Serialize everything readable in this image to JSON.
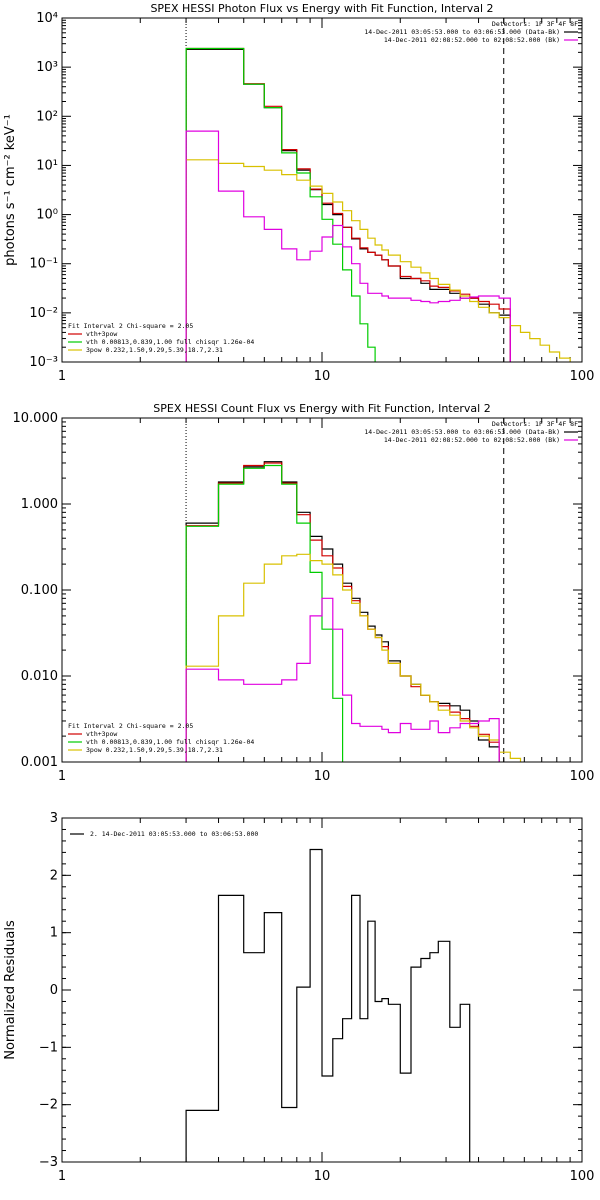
{
  "chart_data": [
    {
      "type": "line",
      "title": "SPEX HESSI Photon Flux vs Energy with Fit Function, Interval 2",
      "ylabel": "photons s⁻¹ cm⁻² keV⁻¹",
      "xlabel": "",
      "xscale": "log",
      "yscale": "log",
      "xlim": [
        1,
        100
      ],
      "ylim": [
        0.001,
        10000
      ],
      "x_ticks": [
        {
          "v": 1,
          "label": "1"
        },
        {
          "v": 10,
          "label": "10"
        },
        {
          "v": 100,
          "label": "100"
        }
      ],
      "y_ticks": [
        {
          "v": 0.001,
          "label": "10⁻³"
        },
        {
          "v": 0.01,
          "label": "10⁻²"
        },
        {
          "v": 0.1,
          "label": "10⁻¹"
        },
        {
          "v": 1,
          "label": "10⁰"
        },
        {
          "v": 10,
          "label": "10¹"
        },
        {
          "v": 100,
          "label": "10²"
        },
        {
          "v": 1000,
          "label": "10³"
        },
        {
          "v": 10000,
          "label": "10⁴"
        }
      ],
      "vlines": [
        {
          "x": 3,
          "style": "dotted"
        },
        {
          "x": 50,
          "style": "dashed"
        }
      ],
      "legend_top": {
        "detectors": "Detectors: 1F 3F 4F 8F",
        "lines": [
          {
            "text": "14-Dec-2011 03:05:53.000 to 03:06:53.000 (Data-Bk)",
            "color": "#000000"
          },
          {
            "text": "14-Dec-2011 02:08:52.000 to 02:08:52.000 (Bk)",
            "color": "#e000e0"
          }
        ]
      },
      "legend_bottom": {
        "header": "Fit Interval 2   Chi-square = 2.05",
        "lines": [
          {
            "text": "vth+3pow",
            "color": "#d00000"
          },
          {
            "text": "vth 0.00813,0.839,1.00  full chisqr 1.26e-04",
            "color": "#00cc00"
          },
          {
            "text": "3pow 0.232,1.50,9.29,5.39,18.7,2.31",
            "color": "#d8c000"
          }
        ]
      },
      "edges": [
        3,
        4,
        5,
        6,
        7,
        8,
        9,
        10,
        11,
        12,
        13,
        14,
        15,
        16,
        17,
        18,
        20,
        22,
        24,
        26,
        28,
        31,
        34,
        37,
        40,
        44,
        48,
        53,
        58,
        63,
        69,
        75,
        82,
        90,
        100
      ],
      "series": [
        {
          "color": "#000000",
          "values": [
            2300,
            2300,
            450,
            150,
            20,
            8,
            3.2,
            1.6,
            1.0,
            0.55,
            0.32,
            0.2,
            0.17,
            0.15,
            0.12,
            0.09,
            0.05,
            0.05,
            0.04,
            0.03,
            0.03,
            0.025,
            0.02,
            0.02,
            0.015,
            0.01,
            0.009
          ]
        },
        {
          "color": "#d00000",
          "values": [
            2400,
            2400,
            460,
            160,
            21,
            8.5,
            3.3,
            1.7,
            1.05,
            0.55,
            0.33,
            0.21,
            0.17,
            0.15,
            0.12,
            0.09,
            0.055,
            0.05,
            0.045,
            0.035,
            0.033,
            0.028,
            0.024,
            0.02,
            0.017,
            0.015,
            0.012
          ]
        },
        {
          "color": "#00cc00",
          "values": [
            2400,
            2400,
            450,
            150,
            18,
            7,
            2.3,
            0.8,
            0.25,
            0.075,
            0.022,
            0.006,
            0.002,
            0.0008
          ]
        },
        {
          "color": "#d8c000",
          "values": [
            13,
            11,
            9.5,
            8,
            6.5,
            5,
            3.8,
            2.7,
            1.8,
            1.2,
            0.75,
            0.5,
            0.33,
            0.24,
            0.19,
            0.15,
            0.11,
            0.085,
            0.065,
            0.05,
            0.038,
            0.029,
            0.022,
            0.017,
            0.013,
            0.01,
            0.008,
            0.0055,
            0.004,
            0.003,
            0.0022,
            0.0016,
            0.0012
          ]
        },
        {
          "color": "#e000e0",
          "values": [
            50,
            3,
            0.9,
            0.5,
            0.2,
            0.12,
            0.18,
            0.35,
            0.6,
            0.22,
            0.1,
            0.04,
            0.025,
            0.025,
            0.022,
            0.02,
            0.02,
            0.018,
            0.017,
            0.016,
            0.017,
            0.018,
            0.02,
            0.021,
            0.022,
            0.022,
            0.02
          ]
        }
      ]
    },
    {
      "type": "line",
      "title": "SPEX HESSI Count Flux vs Energy with Fit Function, Interval 2",
      "ylabel": "",
      "xlabel": "",
      "xscale": "log",
      "yscale": "log",
      "xlim": [
        1,
        100
      ],
      "ylim": [
        0.001,
        10
      ],
      "x_ticks": [
        {
          "v": 1,
          "label": "1"
        },
        {
          "v": 10,
          "label": "10"
        },
        {
          "v": 100,
          "label": "100"
        }
      ],
      "y_ticks": [
        {
          "v": 0.001,
          "label": "0.001"
        },
        {
          "v": 0.01,
          "label": "0.010"
        },
        {
          "v": 0.1,
          "label": "0.100"
        },
        {
          "v": 1,
          "label": "1.000"
        },
        {
          "v": 10,
          "label": "10.000"
        }
      ],
      "vlines": [
        {
          "x": 3,
          "style": "dotted"
        },
        {
          "x": 50,
          "style": "dashed"
        }
      ],
      "legend_top": {
        "detectors": "Detectors: 1F 3F 4F 8F",
        "lines": [
          {
            "text": "14-Dec-2011 03:05:53.000 to 03:06:53.000 (Data-Bk)",
            "color": "#000000"
          },
          {
            "text": "14-Dec-2011 02:08:52.000 to 02:08:52.000 (Bk)",
            "color": "#e000e0"
          }
        ]
      },
      "legend_bottom": {
        "header": "Fit Interval 2   Chi-square = 2.05",
        "lines": [
          {
            "text": "vth+3pow",
            "color": "#d00000"
          },
          {
            "text": "vth 0.00813,0.839,1.00  full chisqr 1.26e-04",
            "color": "#00cc00"
          },
          {
            "text": "3pow 0.232,1.50,9.29,5.39,18.7,2.31",
            "color": "#d8c000"
          }
        ]
      },
      "edges": [
        3,
        4,
        5,
        6,
        7,
        8,
        9,
        10,
        11,
        12,
        13,
        14,
        15,
        16,
        17,
        18,
        20,
        22,
        24,
        26,
        28,
        31,
        34,
        37,
        40,
        44,
        48,
        53,
        58,
        63,
        69,
        75,
        82,
        90,
        100
      ],
      "series": [
        {
          "color": "#000000",
          "values": [
            0.6,
            1.8,
            2.7,
            3.1,
            1.8,
            0.8,
            0.42,
            0.3,
            0.2,
            0.12,
            0.08,
            0.055,
            0.038,
            0.03,
            0.025,
            0.015,
            0.01,
            0.008,
            0.006,
            0.005,
            0.0048,
            0.0045,
            0.004,
            0.003,
            0.0018,
            0.0015
          ]
        },
        {
          "color": "#d00000",
          "values": [
            0.56,
            1.75,
            2.8,
            3.0,
            1.75,
            0.75,
            0.38,
            0.25,
            0.18,
            0.11,
            0.075,
            0.05,
            0.035,
            0.028,
            0.022,
            0.014,
            0.01,
            0.0075,
            0.006,
            0.005,
            0.0045,
            0.0038,
            0.0032,
            0.0026,
            0.0021,
            0.0017
          ]
        },
        {
          "color": "#00cc00",
          "values": [
            0.55,
            1.7,
            2.6,
            2.8,
            1.7,
            0.6,
            0.16,
            0.035,
            0.0055,
            0.0007
          ]
        },
        {
          "color": "#d8c000",
          "values": [
            0.013,
            0.05,
            0.12,
            0.2,
            0.25,
            0.26,
            0.22,
            0.2,
            0.15,
            0.1,
            0.07,
            0.05,
            0.035,
            0.028,
            0.02,
            0.014,
            0.01,
            0.008,
            0.006,
            0.005,
            0.004,
            0.0035,
            0.003,
            0.0025,
            0.002,
            0.0018,
            0.0013,
            0.0011,
            0.0009
          ]
        },
        {
          "color": "#e000e0",
          "values": [
            0.012,
            0.009,
            0.008,
            0.008,
            0.009,
            0.014,
            0.05,
            0.08,
            0.035,
            0.006,
            0.0028,
            0.0026,
            0.0026,
            0.0026,
            0.0024,
            0.0022,
            0.0028,
            0.0024,
            0.0024,
            0.003,
            0.0022,
            0.0025,
            0.0028,
            0.0028,
            0.003,
            0.0032
          ]
        }
      ]
    },
    {
      "type": "line",
      "title": "",
      "ylabel": "Normalized Residuals",
      "xlabel": "",
      "xscale": "log",
      "yscale": "linear",
      "xlim": [
        1,
        100
      ],
      "ylim": [
        -3,
        3
      ],
      "x_ticks": [
        {
          "v": 1,
          "label": "1"
        },
        {
          "v": 10,
          "label": "10"
        },
        {
          "v": 100,
          "label": "100"
        }
      ],
      "y_ticks": [
        {
          "v": -3,
          "label": "−3"
        },
        {
          "v": -2,
          "label": "−2"
        },
        {
          "v": -1,
          "label": "−1"
        },
        {
          "v": 0,
          "label": "0"
        },
        {
          "v": 1,
          "label": "1"
        },
        {
          "v": 2,
          "label": "2"
        },
        {
          "v": 3,
          "label": "3"
        }
      ],
      "legend_top_left": "2. 14-Dec-2011 03:05:53.000 to 03:06:53.000",
      "edges": [
        3,
        4,
        5,
        6,
        7,
        8,
        9,
        10,
        11,
        12,
        13,
        14,
        15,
        16,
        17,
        18,
        20,
        22,
        24,
        26,
        28,
        31,
        34,
        37,
        40,
        44,
        48,
        53
      ],
      "series": [
        {
          "color": "#000000",
          "values": [
            -2.1,
            1.65,
            0.65,
            1.35,
            -2.05,
            0.05,
            2.45,
            -1.5,
            -0.85,
            -0.5,
            1.65,
            -0.5,
            1.2,
            -0.2,
            -0.15,
            -0.25,
            -1.45,
            0.4,
            0.55,
            0.65,
            0.85,
            -0.65,
            -0.25
          ]
        }
      ]
    }
  ]
}
